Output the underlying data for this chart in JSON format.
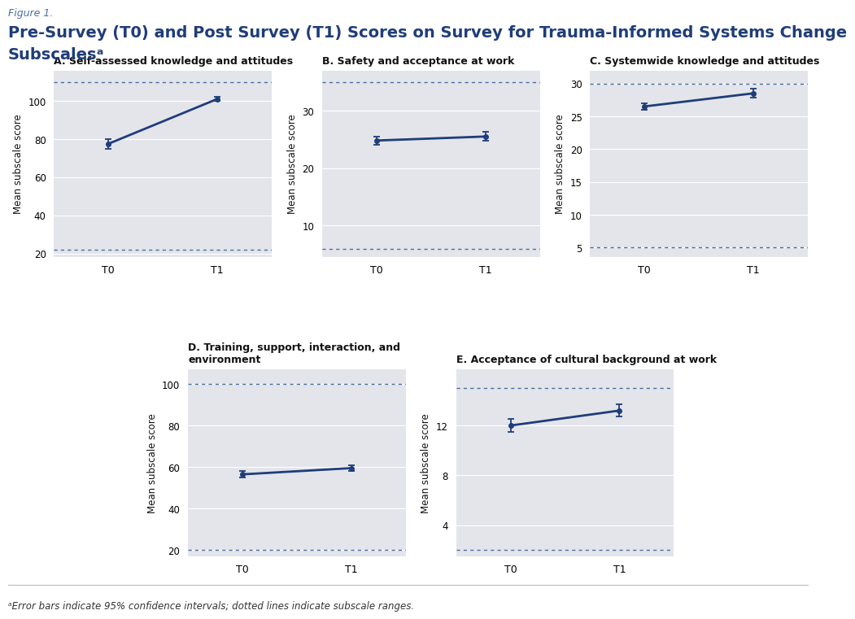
{
  "figure_label": "Figure 1.",
  "title_line1": "Pre-Survey (T0) and Post Survey (T1) Scores on Survey for Trauma-Informed Systems Change",
  "title_line2": "Subscalesᵃ",
  "footnote": "ᵃError bars indicate 95% confidence intervals; dotted lines indicate subscale ranges.",
  "subplots": [
    {
      "label": "A. Self-assessed knowledge and attitudes",
      "x": [
        "T0",
        "T1"
      ],
      "y": [
        77.5,
        101.0
      ],
      "yerr": [
        2.5,
        1.0
      ],
      "ylim": [
        18,
        116
      ],
      "yticks": [
        20,
        40,
        60,
        80,
        100
      ],
      "dotted_lines": [
        22,
        110
      ],
      "row": 0,
      "col": 0
    },
    {
      "label": "B. Safety and acceptance at work",
      "x": [
        "T0",
        "T1"
      ],
      "y": [
        24.8,
        25.5
      ],
      "yerr": [
        0.7,
        0.8
      ],
      "ylim": [
        4.5,
        37
      ],
      "yticks": [
        10,
        20,
        30
      ],
      "dotted_lines": [
        6,
        35
      ],
      "row": 0,
      "col": 1
    },
    {
      "label": "C. Systemwide knowledge and attitudes",
      "x": [
        "T0",
        "T1"
      ],
      "y": [
        26.5,
        28.5
      ],
      "yerr": [
        0.5,
        0.7
      ],
      "ylim": [
        3.5,
        32
      ],
      "yticks": [
        5,
        10,
        15,
        20,
        25,
        30
      ],
      "dotted_lines": [
        5,
        30
      ],
      "row": 0,
      "col": 2
    },
    {
      "label": "D. Training, support, interaction, and\nenvironment",
      "x": [
        "T0",
        "T1"
      ],
      "y": [
        56.5,
        59.5
      ],
      "yerr": [
        1.5,
        1.3
      ],
      "ylim": [
        17,
        107
      ],
      "yticks": [
        20,
        40,
        60,
        80,
        100
      ],
      "dotted_lines": [
        20,
        100
      ],
      "row": 1,
      "col": 0
    },
    {
      "label": "E. Acceptance of cultural background at work",
      "x": [
        "T0",
        "T1"
      ],
      "y": [
        12.0,
        13.2
      ],
      "yerr": [
        0.5,
        0.5
      ],
      "ylim": [
        1.5,
        16.5
      ],
      "yticks": [
        4,
        8,
        12
      ],
      "dotted_lines": [
        2,
        15
      ],
      "row": 1,
      "col": 1
    }
  ],
  "line_color": "#1f3d7a",
  "marker_size": 4,
  "line_width": 2.0,
  "bg_color": "#e3e5ea",
  "fig_bg_color": "#ffffff",
  "grid_color": "#ffffff",
  "dotted_color": "#4a6fa5",
  "ylabel": "Mean subscale score",
  "title_color": "#1f3d7a",
  "label_color": "#111111",
  "figure_label_color": "#4a6fa5"
}
